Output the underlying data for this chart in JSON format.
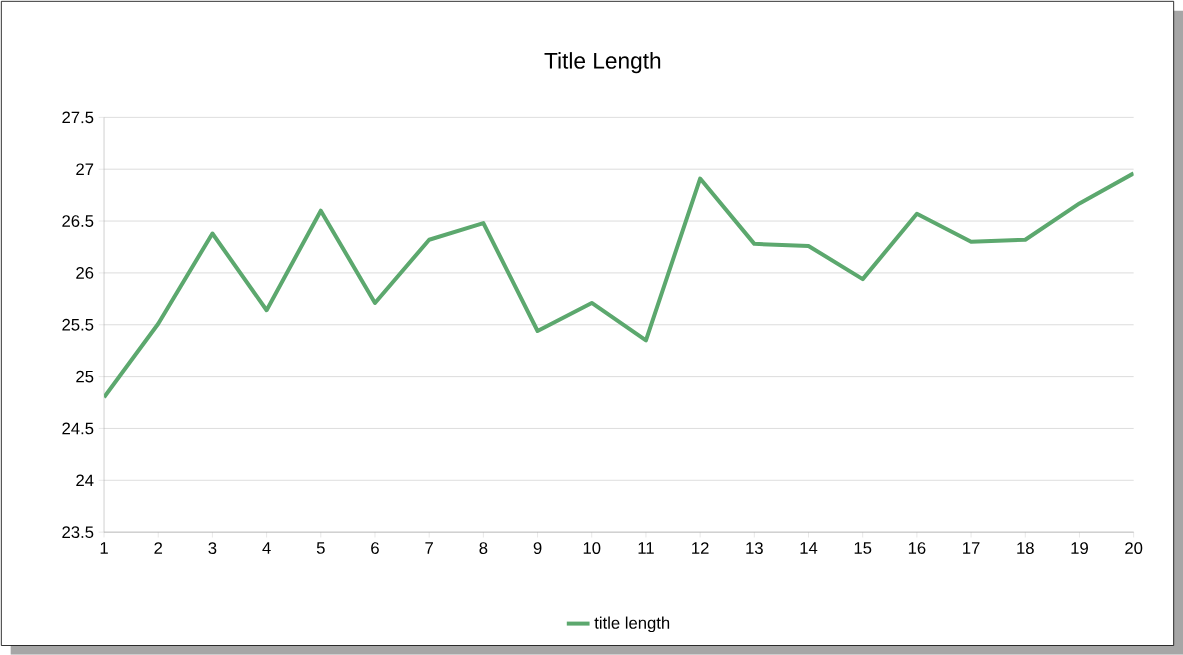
{
  "chart_data": {
    "type": "line",
    "title": "Title Length",
    "categories": [
      "1",
      "2",
      "3",
      "4",
      "5",
      "6",
      "7",
      "8",
      "9",
      "10",
      "11",
      "12",
      "13",
      "14",
      "15",
      "16",
      "17",
      "18",
      "19",
      "20"
    ],
    "series": [
      {
        "name": "title length",
        "color": "#5ca86e",
        "values": [
          24.8,
          25.51,
          26.38,
          25.64,
          26.6,
          25.71,
          26.32,
          26.48,
          25.44,
          25.71,
          25.35,
          26.91,
          26.28,
          26.26,
          25.94,
          26.57,
          26.3,
          26.32,
          26.67,
          26.96
        ]
      }
    ],
    "ylim": [
      23.5,
      27.5
    ],
    "yticks": [
      23.5,
      24,
      24.5,
      25,
      25.5,
      26,
      26.5,
      27,
      27.5
    ],
    "grid": "y",
    "legend": "bottom",
    "marker": "none",
    "line_style": "solid"
  }
}
